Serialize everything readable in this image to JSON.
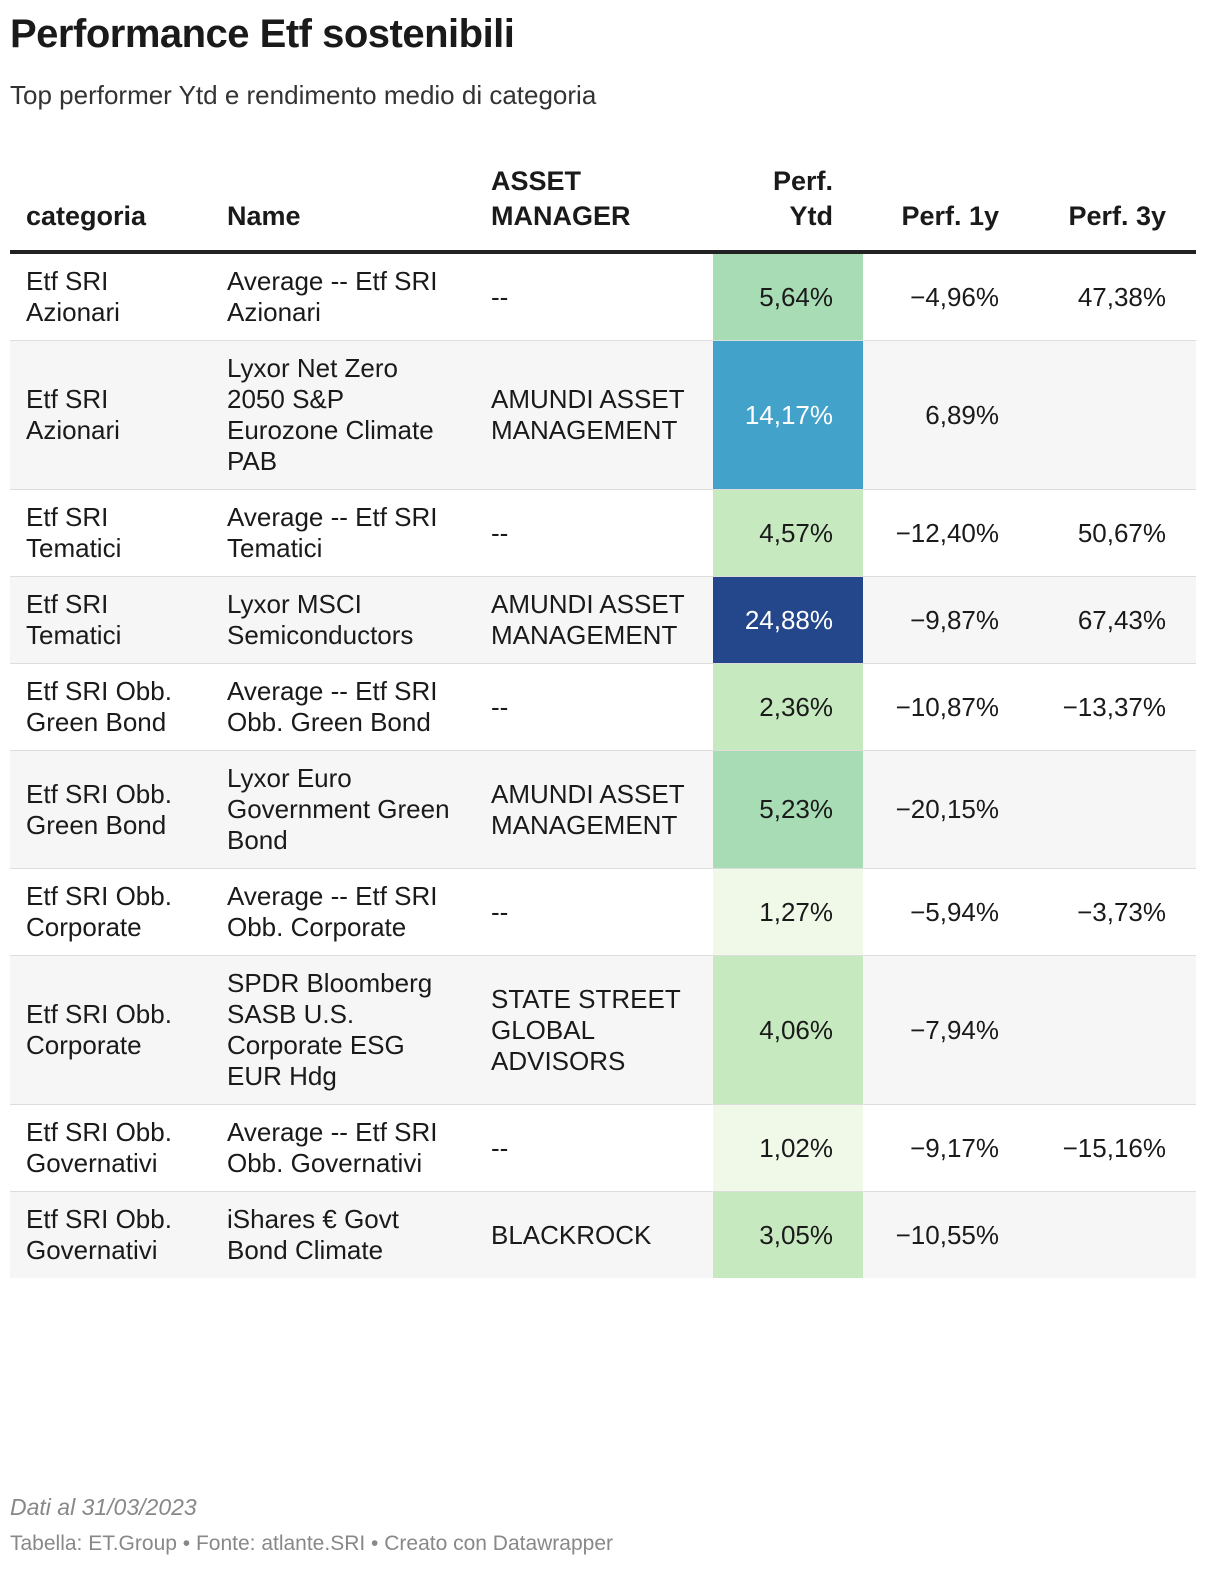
{
  "title": "Performance Etf sostenibili",
  "subtitle": "Top performer Ytd e rendimento medio di categoria",
  "note": "Dati al 31/03/2023",
  "credit": "Tabella: ET.Group • Fonte: atlante.SRI • Creato con Datawrapper",
  "chart_data": {
    "type": "table",
    "title": "Performance Etf sostenibili",
    "subtitle": "Top performer Ytd e rendimento medio di categoria",
    "columns": [
      {
        "key": "categoria",
        "label": "categoria",
        "align": "left"
      },
      {
        "key": "name",
        "label": "Name",
        "align": "left"
      },
      {
        "key": "asset_manager",
        "label": "ASSET MANAGER",
        "align": "left"
      },
      {
        "key": "perf_ytd",
        "label": "Perf. Ytd",
        "align": "right"
      },
      {
        "key": "perf_1y",
        "label": "Perf. 1y",
        "align": "right"
      },
      {
        "key": "perf_3y",
        "label": "Perf. 3y",
        "align": "right"
      }
    ],
    "rows": [
      {
        "categoria": "Etf SRI Azionari",
        "name": "Average -- Etf SRI Azionari",
        "asset_manager": "--",
        "perf_ytd": "5,64%",
        "perf_1y": "−4,96%",
        "perf_3y": "47,38%",
        "ytd_value": 5.64
      },
      {
        "categoria": "Etf SRI Azionari",
        "name": "Lyxor Net Zero 2050 S&P Eurozone Climate PAB",
        "asset_manager": "AMUNDI ASSET MANAGEMENT",
        "perf_ytd": "14,17%",
        "perf_1y": "6,89%",
        "perf_3y": "",
        "ytd_value": 14.17
      },
      {
        "categoria": "Etf SRI Tematici",
        "name": "Average -- Etf SRI Tematici",
        "asset_manager": "--",
        "perf_ytd": "4,57%",
        "perf_1y": "−12,40%",
        "perf_3y": "50,67%",
        "ytd_value": 4.57
      },
      {
        "categoria": "Etf SRI Tematici",
        "name": "Lyxor MSCI Semiconductors",
        "asset_manager": "AMUNDI ASSET MANAGEMENT",
        "perf_ytd": "24,88%",
        "perf_1y": "−9,87%",
        "perf_3y": "67,43%",
        "ytd_value": 24.88
      },
      {
        "categoria": "Etf SRI Obb. Green Bond",
        "name": "Average -- Etf SRI Obb. Green Bond",
        "asset_manager": "--",
        "perf_ytd": "2,36%",
        "perf_1y": "−10,87%",
        "perf_3y": "−13,37%",
        "ytd_value": 2.36
      },
      {
        "categoria": "Etf SRI Obb. Green Bond",
        "name": "Lyxor Euro Government Green Bond",
        "asset_manager": "AMUNDI ASSET MANAGEMENT",
        "perf_ytd": "5,23%",
        "perf_1y": "−20,15%",
        "perf_3y": "",
        "ytd_value": 5.23
      },
      {
        "categoria": "Etf SRI Obb. Corporate",
        "name": "Average -- Etf SRI Obb. Corporate",
        "asset_manager": "--",
        "perf_ytd": "1,27%",
        "perf_1y": "−5,94%",
        "perf_3y": "−3,73%",
        "ytd_value": 1.27
      },
      {
        "categoria": "Etf SRI Obb. Corporate",
        "name": "SPDR Bloomberg SASB U.S. Corporate ESG EUR Hdg",
        "asset_manager": "STATE STREET GLOBAL ADVISORS",
        "perf_ytd": "4,06%",
        "perf_1y": "−7,94%",
        "perf_3y": "",
        "ytd_value": 4.06
      },
      {
        "categoria": "Etf SRI Obb. Governativi",
        "name": "Average -- Etf SRI Obb. Governativi",
        "asset_manager": "--",
        "perf_ytd": "1,02%",
        "perf_1y": "−9,17%",
        "perf_3y": "−15,16%",
        "ytd_value": 1.02
      },
      {
        "categoria": "Etf SRI Obb. Governativi",
        "name": "iShares € Govt Bond Climate",
        "asset_manager": "BLACKROCK",
        "perf_ytd": "3,05%",
        "perf_1y": "−10,55%",
        "perf_3y": "",
        "ytd_value": 3.05
      }
    ],
    "heatmap_column": "perf_ytd",
    "heatmap_colors": [
      "#f0f9e8",
      "#c7e9c0",
      "#a8dcb5",
      "#43a2ca",
      "#23478a"
    ]
  }
}
